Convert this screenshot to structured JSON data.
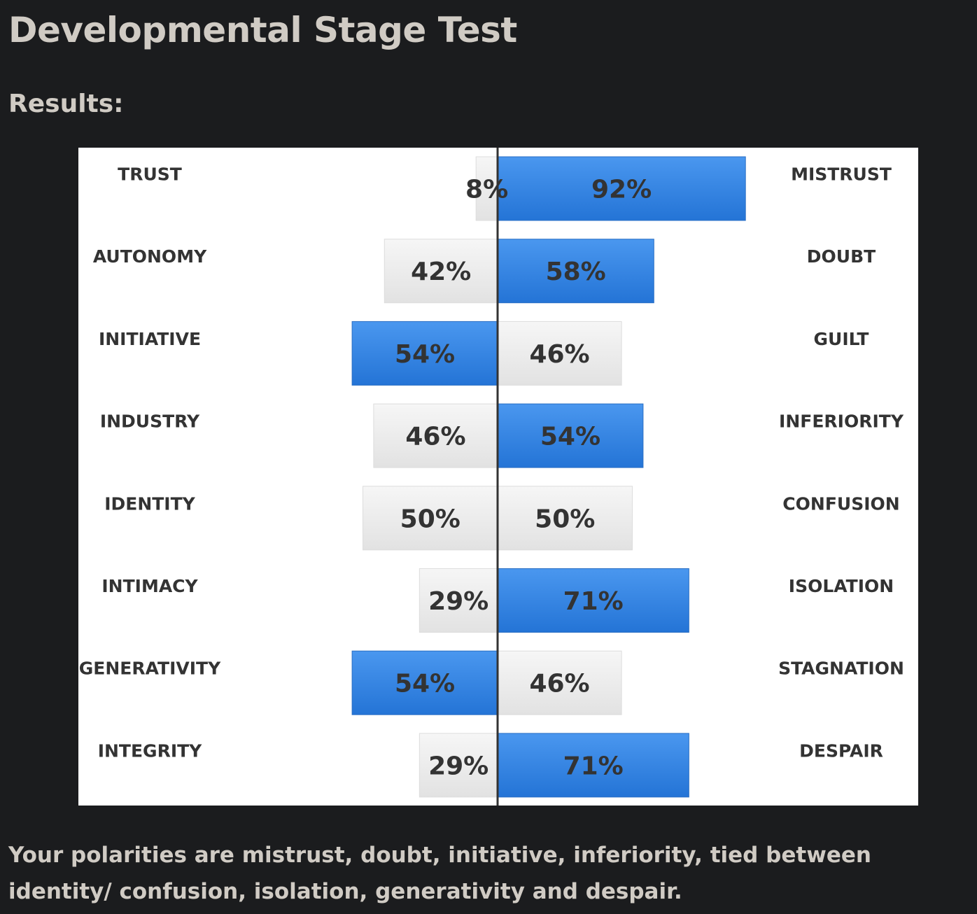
{
  "page": {
    "title": "Developmental Stage Test",
    "results_heading": "Results:",
    "summary": "Your polarities are mistrust, doubt, initiative, inferiority, tied between identity/ confusion, isolation, generativity and despair."
  },
  "colors": {
    "highlight": "#2f82e4",
    "neutral": "#ececec",
    "divider": "#333333"
  },
  "chart_data": {
    "type": "bar",
    "orientation": "horizontal-diverging",
    "xlim": [
      -100,
      100
    ],
    "grid": false,
    "rows": [
      {
        "left": "TRUST",
        "right": "MISTRUST",
        "left_value": 8,
        "right_value": 92,
        "left_label": "8%",
        "right_label": "92%",
        "highlight": "right"
      },
      {
        "left": "AUTONOMY",
        "right": "DOUBT",
        "left_value": 42,
        "right_value": 58,
        "left_label": "42%",
        "right_label": "58%",
        "highlight": "right"
      },
      {
        "left": "INITIATIVE",
        "right": "GUILT",
        "left_value": 54,
        "right_value": 46,
        "left_label": "54%",
        "right_label": "46%",
        "highlight": "left"
      },
      {
        "left": "INDUSTRY",
        "right": "INFERIORITY",
        "left_value": 46,
        "right_value": 54,
        "left_label": "46%",
        "right_label": "54%",
        "highlight": "right"
      },
      {
        "left": "IDENTITY",
        "right": "CONFUSION",
        "left_value": 50,
        "right_value": 50,
        "left_label": "50%",
        "right_label": "50%",
        "highlight": "none"
      },
      {
        "left": "INTIMACY",
        "right": "ISOLATION",
        "left_value": 29,
        "right_value": 71,
        "left_label": "29%",
        "right_label": "71%",
        "highlight": "right"
      },
      {
        "left": "GENERATIVITY",
        "right": "STAGNATION",
        "left_value": 54,
        "right_value": 46,
        "left_label": "54%",
        "right_label": "46%",
        "highlight": "left"
      },
      {
        "left": "INTEGRITY",
        "right": "DESPAIR",
        "left_value": 29,
        "right_value": 71,
        "left_label": "29%",
        "right_label": "71%",
        "highlight": "right"
      }
    ]
  }
}
